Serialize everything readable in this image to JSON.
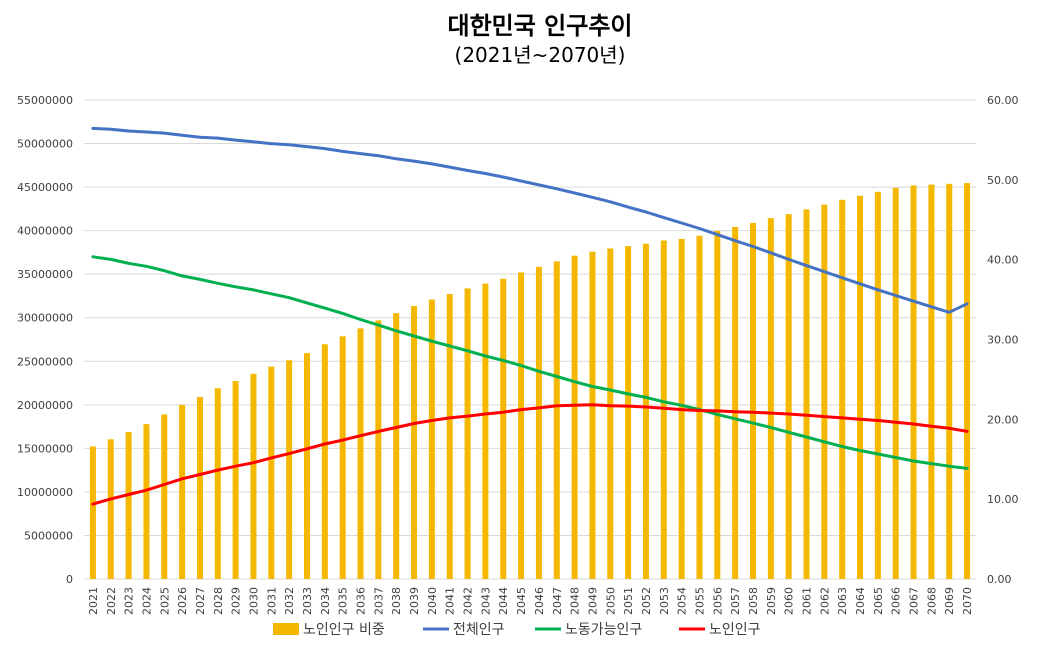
{
  "chart_data": {
    "type": "bar+line",
    "title": "대한민국 인구추이",
    "subtitle": "(2021년~2070년)",
    "categories": [
      "2021",
      "2022",
      "2023",
      "2024",
      "2025",
      "2026",
      "2027",
      "2028",
      "2029",
      "2030",
      "2031",
      "2032",
      "2033",
      "2034",
      "2035",
      "2036",
      "2037",
      "2038",
      "2039",
      "2040",
      "2041",
      "2042",
      "2043",
      "2044",
      "2045",
      "2046",
      "2047",
      "2048",
      "2049",
      "2050",
      "2051",
      "2052",
      "2053",
      "2054",
      "2055",
      "2056",
      "2057",
      "2058",
      "2059",
      "2060",
      "2061",
      "2062",
      "2063",
      "2064",
      "2065",
      "2066",
      "2067",
      "2068",
      "2069",
      "2070"
    ],
    "y_left": {
      "min": 0,
      "max": 55000000,
      "ticks": [
        "0",
        "5000000",
        "10000000",
        "15000000",
        "20000000",
        "25000000",
        "30000000",
        "35000000",
        "40000000",
        "45000000",
        "50000000",
        "55000000"
      ]
    },
    "y_right": {
      "min": 0,
      "max": 60,
      "ticks": [
        "0.00",
        "10.00",
        "20.00",
        "30.00",
        "40.00",
        "50.00",
        "60.00"
      ]
    },
    "grid": true,
    "legend_position": "bottom",
    "series": [
      {
        "name": "노인인구 비중",
        "type": "bar",
        "axis": "right",
        "color": "#f5b800",
        "values": [
          16.6,
          17.5,
          18.4,
          19.4,
          20.6,
          21.8,
          22.8,
          23.9,
          24.8,
          25.7,
          26.6,
          27.4,
          28.3,
          29.4,
          30.4,
          31.4,
          32.4,
          33.3,
          34.2,
          35.0,
          35.7,
          36.4,
          37.0,
          37.6,
          38.4,
          39.1,
          39.8,
          40.5,
          41.0,
          41.4,
          41.7,
          42.0,
          42.4,
          42.6,
          43.0,
          43.6,
          44.1,
          44.6,
          45.2,
          45.7,
          46.3,
          46.9,
          47.5,
          48.0,
          48.5,
          49.0,
          49.3,
          49.4,
          49.5,
          49.6
        ]
      },
      {
        "name": "전체인구",
        "type": "line",
        "axis": "left",
        "color": "#4472c4",
        "values": [
          51740000,
          51630000,
          51440000,
          51330000,
          51200000,
          50950000,
          50730000,
          50620000,
          50400000,
          50200000,
          49990000,
          49860000,
          49650000,
          49420000,
          49100000,
          48850000,
          48600000,
          48250000,
          47980000,
          47660000,
          47300000,
          46900000,
          46560000,
          46160000,
          45700000,
          45250000,
          44800000,
          44320000,
          43830000,
          43310000,
          42700000,
          42140000,
          41500000,
          40880000,
          40240000,
          39550000,
          38850000,
          38180000,
          37460000,
          36700000,
          35990000,
          35280000,
          34590000,
          33900000,
          33210000,
          32550000,
          31900000,
          31260000,
          30620000,
          31600000
        ]
      },
      {
        "name": "노동가능인구",
        "type": "line",
        "axis": "left",
        "color": "#00b050",
        "values": [
          37000000,
          36700000,
          36250000,
          35900000,
          35400000,
          34800000,
          34400000,
          33950000,
          33550000,
          33200000,
          32750000,
          32300000,
          31700000,
          31100000,
          30500000,
          29800000,
          29150000,
          28500000,
          27900000,
          27300000,
          26750000,
          26200000,
          25600000,
          25100000,
          24500000,
          23850000,
          23250000,
          22650000,
          22100000,
          21700000,
          21250000,
          20850000,
          20350000,
          19950000,
          19450000,
          18900000,
          18400000,
          17900000,
          17400000,
          16850000,
          16300000,
          15750000,
          15200000,
          14750000,
          14350000,
          13950000,
          13550000,
          13250000,
          12950000,
          12700000
        ]
      },
      {
        "name": "노인인구",
        "type": "line",
        "axis": "left",
        "color": "#ff0000",
        "values": [
          8600000,
          9200000,
          9700000,
          10200000,
          10850000,
          11500000,
          12000000,
          12500000,
          12950000,
          13350000,
          13900000,
          14400000,
          14950000,
          15500000,
          15950000,
          16450000,
          16950000,
          17400000,
          17850000,
          18200000,
          18500000,
          18700000,
          18950000,
          19150000,
          19450000,
          19650000,
          19900000,
          19950000,
          20000000,
          19900000,
          19850000,
          19750000,
          19600000,
          19450000,
          19350000,
          19300000,
          19200000,
          19150000,
          19050000,
          18950000,
          18800000,
          18650000,
          18500000,
          18350000,
          18200000,
          18000000,
          17800000,
          17550000,
          17300000,
          16950000
        ]
      }
    ]
  }
}
